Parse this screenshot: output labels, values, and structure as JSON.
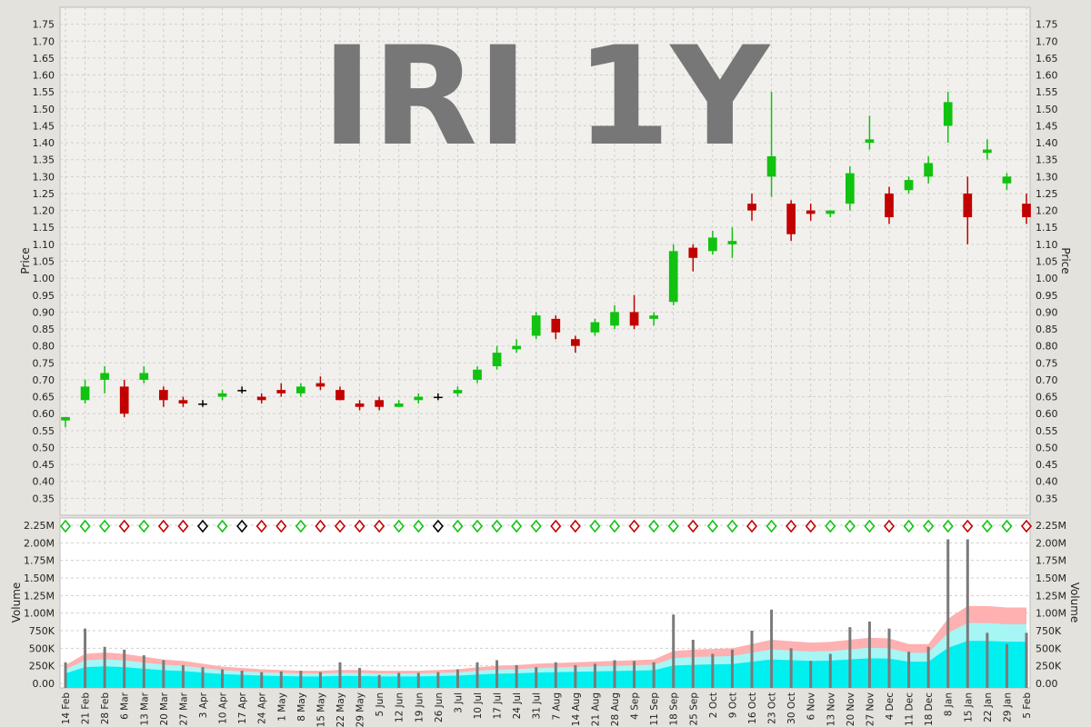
{
  "colors": {
    "up": "#11c211",
    "down": "#c20000",
    "flat": "#000000",
    "panel": "#f1f0ec",
    "grid": "#cfcfcf",
    "band_pink": "#ffb0b0",
    "band_cyan1": "#a6f6f6",
    "band_cyan2": "#00f0f0",
    "vol_bar": "#7a7a7a",
    "volume_bar_high": "#a7a7a7",
    "title_gray": "#777777"
  },
  "chart_data": [
    {
      "type": "candlestick",
      "title": "IRI 1Y",
      "ylabel": "Price",
      "ylim": [
        0.3,
        1.8
      ],
      "yticks": [
        "1.75",
        "1.70",
        "1.65",
        "1.60",
        "1.55",
        "1.50",
        "1.45",
        "1.40",
        "1.35",
        "1.30",
        "1.25",
        "1.20",
        "1.15",
        "1.10",
        "1.05",
        "1.00",
        "0.95",
        "0.90",
        "0.85",
        "0.80",
        "0.75",
        "0.70",
        "0.65",
        "0.60",
        "0.55",
        "0.50",
        "0.45",
        "0.40",
        "0.35"
      ],
      "grid": true,
      "points": [
        {
          "x": "14 Feb",
          "o": 0.58,
          "h": 0.59,
          "l": 0.56,
          "c": 0.59
        },
        {
          "x": "21 Feb",
          "o": 0.64,
          "h": 0.7,
          "l": 0.63,
          "c": 0.68
        },
        {
          "x": "28 Feb",
          "o": 0.7,
          "h": 0.74,
          "l": 0.66,
          "c": 0.72
        },
        {
          "x": "6 Mar",
          "o": 0.68,
          "h": 0.7,
          "l": 0.59,
          "c": 0.6
        },
        {
          "x": "13 Mar",
          "o": 0.7,
          "h": 0.74,
          "l": 0.69,
          "c": 0.72
        },
        {
          "x": "20 Mar",
          "o": 0.67,
          "h": 0.68,
          "l": 0.62,
          "c": 0.64
        },
        {
          "x": "27 Mar",
          "o": 0.64,
          "h": 0.65,
          "l": 0.62,
          "c": 0.63
        },
        {
          "x": "3 Apr",
          "o": 0.63,
          "h": 0.64,
          "l": 0.62,
          "c": 0.63
        },
        {
          "x": "10 Apr",
          "o": 0.65,
          "h": 0.67,
          "l": 0.64,
          "c": 0.66
        },
        {
          "x": "17 Apr",
          "o": 0.67,
          "h": 0.68,
          "l": 0.66,
          "c": 0.67
        },
        {
          "x": "24 Apr",
          "o": 0.65,
          "h": 0.66,
          "l": 0.63,
          "c": 0.64
        },
        {
          "x": "1 May",
          "o": 0.67,
          "h": 0.69,
          "l": 0.65,
          "c": 0.66
        },
        {
          "x": "8 May",
          "o": 0.66,
          "h": 0.69,
          "l": 0.65,
          "c": 0.68
        },
        {
          "x": "15 May",
          "o": 0.69,
          "h": 0.71,
          "l": 0.67,
          "c": 0.68
        },
        {
          "x": "22 May",
          "o": 0.67,
          "h": 0.68,
          "l": 0.64,
          "c": 0.64
        },
        {
          "x": "29 May",
          "o": 0.63,
          "h": 0.64,
          "l": 0.61,
          "c": 0.62
        },
        {
          "x": "5 Jun",
          "o": 0.64,
          "h": 0.65,
          "l": 0.61,
          "c": 0.62
        },
        {
          "x": "12 Jun",
          "o": 0.62,
          "h": 0.64,
          "l": 0.62,
          "c": 0.63
        },
        {
          "x": "19 Jun",
          "o": 0.64,
          "h": 0.66,
          "l": 0.63,
          "c": 0.65
        },
        {
          "x": "26 Jun",
          "o": 0.65,
          "h": 0.66,
          "l": 0.64,
          "c": 0.65
        },
        {
          "x": "3 Jul",
          "o": 0.66,
          "h": 0.68,
          "l": 0.65,
          "c": 0.67
        },
        {
          "x": "10 Jul",
          "o": 0.7,
          "h": 0.74,
          "l": 0.69,
          "c": 0.73
        },
        {
          "x": "17 Jul",
          "o": 0.74,
          "h": 0.8,
          "l": 0.73,
          "c": 0.78
        },
        {
          "x": "24 Jul",
          "o": 0.79,
          "h": 0.82,
          "l": 0.78,
          "c": 0.8
        },
        {
          "x": "31 Jul",
          "o": 0.83,
          "h": 0.9,
          "l": 0.82,
          "c": 0.89
        },
        {
          "x": "7 Aug",
          "o": 0.88,
          "h": 0.89,
          "l": 0.82,
          "c": 0.84
        },
        {
          "x": "14 Aug",
          "o": 0.82,
          "h": 0.83,
          "l": 0.78,
          "c": 0.8
        },
        {
          "x": "21 Aug",
          "o": 0.84,
          "h": 0.88,
          "l": 0.83,
          "c": 0.87
        },
        {
          "x": "28 Aug",
          "o": 0.86,
          "h": 0.92,
          "l": 0.85,
          "c": 0.9
        },
        {
          "x": "4 Sep",
          "o": 0.9,
          "h": 0.95,
          "l": 0.85,
          "c": 0.86
        },
        {
          "x": "11 Sep",
          "o": 0.88,
          "h": 0.9,
          "l": 0.86,
          "c": 0.89
        },
        {
          "x": "18 Sep",
          "o": 0.93,
          "h": 1.1,
          "l": 0.92,
          "c": 1.08
        },
        {
          "x": "25 Sep",
          "o": 1.09,
          "h": 1.1,
          "l": 1.02,
          "c": 1.06
        },
        {
          "x": "2 Oct",
          "o": 1.08,
          "h": 1.14,
          "l": 1.07,
          "c": 1.12
        },
        {
          "x": "9 Oct",
          "o": 1.1,
          "h": 1.15,
          "l": 1.06,
          "c": 1.11
        },
        {
          "x": "16 Oct",
          "o": 1.22,
          "h": 1.25,
          "l": 1.17,
          "c": 1.2
        },
        {
          "x": "23 Oct",
          "o": 1.3,
          "h": 1.55,
          "l": 1.24,
          "c": 1.36
        },
        {
          "x": "30 Oct",
          "o": 1.22,
          "h": 1.23,
          "l": 1.11,
          "c": 1.13
        },
        {
          "x": "6 Nov",
          "o": 1.2,
          "h": 1.22,
          "l": 1.17,
          "c": 1.19
        },
        {
          "x": "13 Nov",
          "o": 1.19,
          "h": 1.2,
          "l": 1.18,
          "c": 1.2
        },
        {
          "x": "20 Nov",
          "o": 1.22,
          "h": 1.33,
          "l": 1.2,
          "c": 1.31
        },
        {
          "x": "27 Nov",
          "o": 1.4,
          "h": 1.48,
          "l": 1.38,
          "c": 1.41
        },
        {
          "x": "4 Dec",
          "o": 1.25,
          "h": 1.27,
          "l": 1.16,
          "c": 1.18
        },
        {
          "x": "11 Dec",
          "o": 1.26,
          "h": 1.3,
          "l": 1.25,
          "c": 1.29
        },
        {
          "x": "18 Dec",
          "o": 1.3,
          "h": 1.36,
          "l": 1.28,
          "c": 1.34
        },
        {
          "x": "8 Jan",
          "o": 1.45,
          "h": 1.55,
          "l": 1.4,
          "c": 1.52
        },
        {
          "x": "15 Jan",
          "o": 1.25,
          "h": 1.3,
          "l": 1.1,
          "c": 1.18
        },
        {
          "x": "22 Jan",
          "o": 1.37,
          "h": 1.41,
          "l": 1.35,
          "c": 1.38
        },
        {
          "x": "29 Jan",
          "o": 1.28,
          "h": 1.31,
          "l": 1.26,
          "c": 1.3
        },
        {
          "x": "5 Feb",
          "o": 1.22,
          "h": 1.25,
          "l": 1.16,
          "c": 1.18
        }
      ]
    },
    {
      "type": "bar",
      "ylabel": "Volume",
      "ylim": [
        0,
        2250000
      ],
      "yticks": [
        "2.25M",
        "2.00M",
        "1.75M",
        "1.50M",
        "1.25M",
        "1.00M",
        "750K",
        "500K",
        "250K",
        "0.00"
      ],
      "grid": true,
      "categories": [
        "14 Feb",
        "21 Feb",
        "28 Feb",
        "6 Mar",
        "13 Mar",
        "20 Mar",
        "27 Mar",
        "3 Apr",
        "10 Apr",
        "17 Apr",
        "24 Apr",
        "1 May",
        "8 May",
        "15 May",
        "22 May",
        "29 May",
        "5 Jun",
        "12 Jun",
        "19 Jun",
        "26 Jun",
        "3 Jul",
        "10 Jul",
        "17 Jul",
        "24 Jul",
        "31 Jul",
        "7 Aug",
        "14 Aug",
        "21 Aug",
        "28 Aug",
        "4 Sep",
        "11 Sep",
        "18 Sep",
        "25 Sep",
        "2 Oct",
        "9 Oct",
        "16 Oct",
        "23 Oct",
        "30 Oct",
        "6 Nov",
        "13 Nov",
        "20 Nov",
        "27 Nov",
        "4 Dec",
        "11 Dec",
        "18 Dec",
        "8 Jan",
        "15 Jan",
        "22 Jan",
        "29 Jan",
        "5 Feb"
      ],
      "values": [
        300000,
        780000,
        520000,
        480000,
        400000,
        330000,
        260000,
        230000,
        200000,
        180000,
        160000,
        170000,
        180000,
        160000,
        300000,
        220000,
        120000,
        150000,
        150000,
        160000,
        200000,
        300000,
        330000,
        260000,
        230000,
        300000,
        260000,
        280000,
        330000,
        320000,
        300000,
        980000,
        620000,
        420000,
        480000,
        750000,
        1050000,
        500000,
        320000,
        420000,
        800000,
        880000,
        780000,
        450000,
        520000,
        2050000,
        2050000,
        720000,
        560000,
        720000
      ],
      "band_pink": [
        260000,
        420000,
        440000,
        420000,
        380000,
        340000,
        320000,
        280000,
        240000,
        220000,
        200000,
        190000,
        180000,
        180000,
        190000,
        190000,
        180000,
        180000,
        180000,
        190000,
        200000,
        230000,
        250000,
        260000,
        280000,
        290000,
        300000,
        310000,
        320000,
        330000,
        340000,
        460000,
        480000,
        490000,
        500000,
        560000,
        620000,
        600000,
        580000,
        590000,
        620000,
        650000,
        640000,
        560000,
        560000,
        920000,
        1100000,
        1100000,
        1080000,
        1080000
      ]
    }
  ]
}
